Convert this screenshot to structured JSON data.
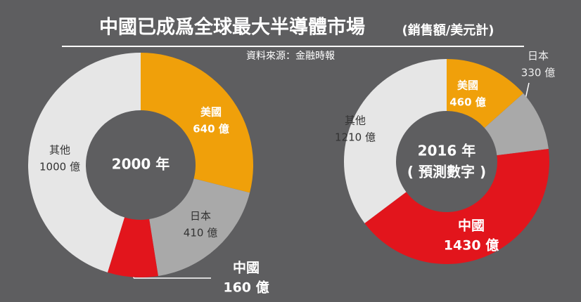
{
  "title": "中國已成爲全球最大半導體市場",
  "subtitle": "(銷售額/美元計)",
  "source": "資料來源：金融時報",
  "chart_data": [
    {
      "type": "donut",
      "center_label": [
        "2000 年"
      ],
      "categories": [
        "美國",
        "日本",
        "中國",
        "其他"
      ],
      "values": [
        640,
        410,
        160,
        1000
      ],
      "value_labels": [
        "640 億",
        "410 億",
        "160 億",
        "1000 億"
      ],
      "colors": [
        "#f0a00a",
        "#a9a9a9",
        "#e2151c",
        "#e6e6e6"
      ]
    },
    {
      "type": "donut",
      "center_label": [
        "2016 年",
        "( 預測數字 )"
      ],
      "categories": [
        "美國",
        "日本",
        "中國",
        "其他"
      ],
      "values": [
        460,
        330,
        1430,
        1210
      ],
      "value_labels": [
        "460 億",
        "330 億",
        "1430 億",
        "1210 億"
      ],
      "colors": [
        "#f0a00a",
        "#a9a9a9",
        "#e2151c",
        "#e6e6e6"
      ]
    }
  ]
}
